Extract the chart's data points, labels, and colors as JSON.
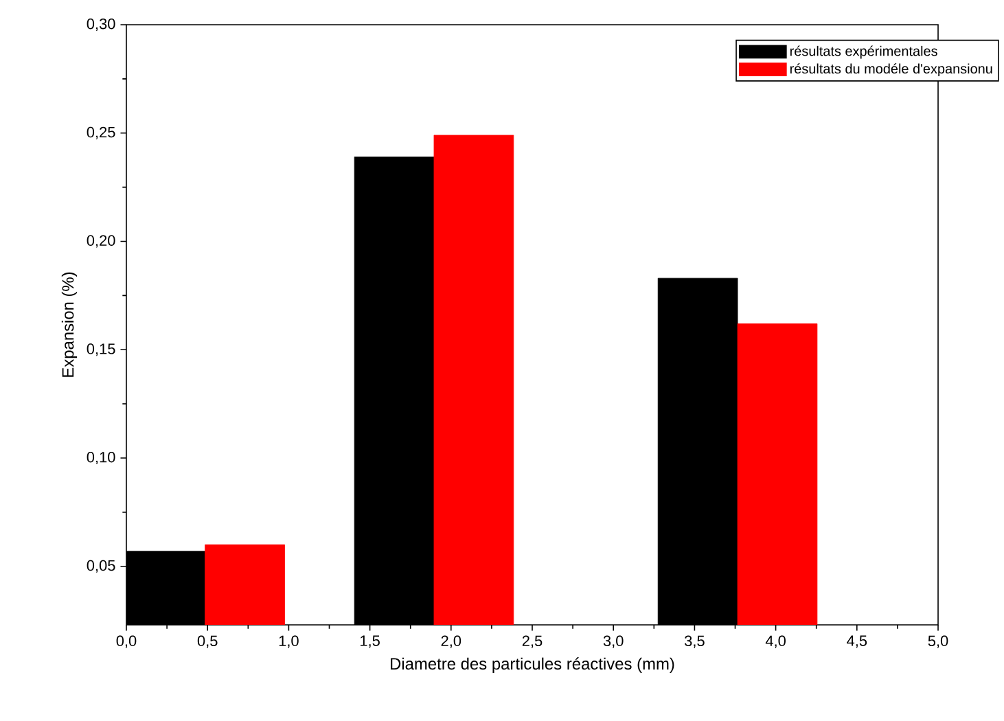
{
  "chart_data": {
    "type": "bar",
    "xlabel": "Diametre des particules réactives (mm)",
    "ylabel": "Expansion (%)",
    "series": [
      {
        "name": "résultats expérimentales",
        "color": "#000000",
        "x": [
          0.24,
          1.65,
          3.52
        ],
        "values": [
          0.057,
          0.239,
          0.183
        ]
      },
      {
        "name": "résultats du modéle d'expansionu",
        "color": "#ff0000",
        "x": [
          0.73,
          2.14,
          4.01
        ],
        "values": [
          0.06,
          0.249,
          0.162
        ]
      }
    ],
    "xlim": [
      0,
      5
    ],
    "ylim": [
      0.023,
      0.3
    ],
    "xticks": [
      {
        "value": 0,
        "label": "0,0"
      },
      {
        "value": 0.5,
        "label": "0,5"
      },
      {
        "value": 1,
        "label": "1,0"
      },
      {
        "value": 1.5,
        "label": "1,5"
      },
      {
        "value": 2,
        "label": "2,0"
      },
      {
        "value": 2.5,
        "label": "2,5"
      },
      {
        "value": 3,
        "label": "3,0"
      },
      {
        "value": 3.5,
        "label": "3,5"
      },
      {
        "value": 4,
        "label": "4,0"
      },
      {
        "value": 4.5,
        "label": "4,5"
      },
      {
        "value": 5,
        "label": "5,0"
      }
    ],
    "yticks": [
      {
        "value": 0.05,
        "label": "0,05"
      },
      {
        "value": 0.1,
        "label": "0,10"
      },
      {
        "value": 0.15,
        "label": "0,15"
      },
      {
        "value": 0.2,
        "label": "0,20"
      },
      {
        "value": 0.25,
        "label": "0,25"
      },
      {
        "value": 0.3,
        "label": "0,30"
      }
    ],
    "legend": "top right",
    "grid": false
  }
}
